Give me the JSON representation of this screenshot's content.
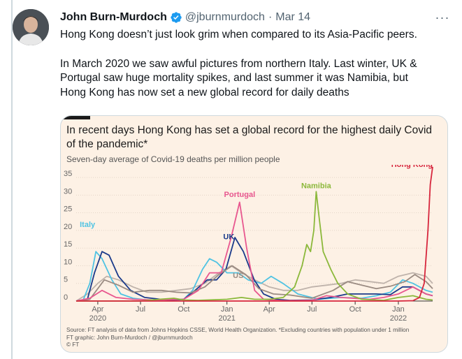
{
  "tweet": {
    "author": "John Burn-Murdoch",
    "handle": "@jburnmurdoch",
    "separator": "·",
    "date": "Mar 14",
    "more_icon": "···",
    "text_lines": [
      "Hong Kong doesn’t just look grim when compared to its Asia-Pacific peers.",
      "In March 2020 we saw awful pictures from northern Italy. Last winter, UK &",
      "Portugal saw huge mortality spikes, and last summer it was Namibia, but",
      "Hong Kong has now set a new global record for daily deaths"
    ],
    "colors": {
      "verified": "#1d9bf0",
      "secondary_text": "#536471",
      "chart_background": "#fdf1e5"
    }
  },
  "chart_data": {
    "type": "line",
    "title_lines": [
      "In recent days Hong Kong has set a global record for the highest daily Covid",
      "of the pandemic*"
    ],
    "subtitle": "Seven-day average of Covid-19 deaths per million people",
    "ylim": [
      0,
      37
    ],
    "yticks": [
      0,
      5,
      10,
      15,
      20,
      25,
      30,
      35
    ],
    "xlim": [
      "2020-02-15",
      "2022-03-15"
    ],
    "xticks": [
      {
        "date": "2020-04-01",
        "label": "Apr",
        "year": "2020"
      },
      {
        "date": "2020-07-01",
        "label": "Jul",
        "year": ""
      },
      {
        "date": "2020-10-01",
        "label": "Oct",
        "year": ""
      },
      {
        "date": "2021-01-01",
        "label": "Jan",
        "year": "2021"
      },
      {
        "date": "2021-04-01",
        "label": "Apr",
        "year": ""
      },
      {
        "date": "2021-07-01",
        "label": "Jul",
        "year": ""
      },
      {
        "date": "2021-10-01",
        "label": "Oct",
        "year": ""
      },
      {
        "date": "2022-01-01",
        "label": "Jan",
        "year": "2022"
      }
    ],
    "grid": true,
    "legend": "inline labels",
    "series": [
      {
        "name": "",
        "color": "#bfb3ab",
        "x": [
          "2020-02-15",
          "2020-03-10",
          "2020-04-01",
          "2020-04-20",
          "2020-05-15",
          "2020-06-15",
          "2020-07-15",
          "2020-08-15",
          "2020-09-15",
          "2020-10-15",
          "2020-11-15",
          "2020-12-15",
          "2021-01-10",
          "2021-02-01",
          "2021-03-01",
          "2021-04-01",
          "2021-05-01",
          "2021-06-01",
          "2021-07-01",
          "2021-08-01",
          "2021-09-01",
          "2021-10-01",
          "2021-11-01",
          "2021-12-01",
          "2022-01-01",
          "2022-02-01",
          "2022-03-01",
          "2022-03-15"
        ],
        "y": [
          0,
          2,
          5,
          7,
          6,
          4,
          2.5,
          2.5,
          3,
          3.5,
          5,
          8,
          10,
          8,
          6,
          4,
          3,
          3,
          4,
          4.5,
          5,
          6,
          5.5,
          5,
          7,
          8,
          7,
          5
        ]
      },
      {
        "name": "Italy",
        "color": "#4fc3e3",
        "x": [
          "2020-02-15",
          "2020-03-01",
          "2020-03-15",
          "2020-03-28",
          "2020-04-10",
          "2020-05-01",
          "2020-05-20",
          "2020-06-15",
          "2020-07-15",
          "2020-09-01",
          "2020-10-01",
          "2020-10-20",
          "2020-11-10",
          "2020-11-25",
          "2020-12-10",
          "2021-01-01",
          "2021-01-25",
          "2021-02-15",
          "2021-03-15",
          "2021-04-05",
          "2021-04-30",
          "2021-06-01",
          "2021-07-15",
          "2021-09-01",
          "2021-10-15",
          "2021-11-15",
          "2021-12-15",
          "2022-01-10",
          "2022-02-01",
          "2022-03-01",
          "2022-03-15"
        ],
        "y": [
          0,
          0.3,
          5,
          14,
          12,
          6,
          2,
          0.8,
          0.3,
          0.2,
          0.5,
          3,
          9,
          12,
          11,
          8,
          8,
          6,
          5,
          7,
          5,
          2,
          0.5,
          1,
          0.8,
          1.5,
          2.5,
          6,
          5,
          3,
          2.5
        ]
      },
      {
        "name": "UK",
        "color": "#1a3a8a",
        "x": [
          "2020-02-15",
          "2020-03-10",
          "2020-03-25",
          "2020-04-10",
          "2020-04-25",
          "2020-05-15",
          "2020-06-10",
          "2020-07-10",
          "2020-09-01",
          "2020-10-01",
          "2020-10-25",
          "2020-11-20",
          "2020-12-10",
          "2020-12-30",
          "2021-01-18",
          "2021-02-05",
          "2021-02-28",
          "2021-03-20",
          "2021-04-15",
          "2021-05-15",
          "2021-07-01",
          "2021-08-10",
          "2021-09-15",
          "2021-10-15",
          "2021-11-15",
          "2021-12-15",
          "2022-01-10",
          "2022-02-01",
          "2022-03-01",
          "2022-03-15"
        ],
        "y": [
          0,
          0.5,
          8,
          14,
          13,
          7,
          3,
          1,
          0.2,
          0.5,
          3,
          6,
          6,
          9,
          18,
          14,
          6,
          2,
          0.5,
          0.2,
          0.3,
          1,
          2,
          2,
          2,
          1.8,
          4,
          4,
          2,
          1.5
        ]
      },
      {
        "name": "US",
        "color": "#9a8b82",
        "x": [
          "2020-02-15",
          "2020-03-15",
          "2020-04-15",
          "2020-05-15",
          "2020-06-15",
          "2020-07-20",
          "2020-08-15",
          "2020-09-15",
          "2020-10-15",
          "2020-11-15",
          "2020-12-15",
          "2021-01-12",
          "2021-02-10",
          "2021-03-10",
          "2021-04-10",
          "2021-05-15",
          "2021-07-01",
          "2021-08-15",
          "2021-09-15",
          "2021-10-15",
          "2021-11-15",
          "2021-12-15",
          "2022-01-15",
          "2022-02-05",
          "2022-03-01",
          "2022-03-15"
        ],
        "y": [
          0,
          0.5,
          6,
          4.5,
          2.5,
          3,
          3,
          2.5,
          2.3,
          4,
          7.5,
          10,
          7.5,
          3.5,
          2,
          1.7,
          0.8,
          3,
          5.5,
          4.5,
          3.5,
          4.2,
          5.5,
          7.5,
          5.5,
          3.5
        ]
      },
      {
        "name": "Portugal",
        "color": "#e8578f",
        "x": [
          "2020-02-15",
          "2020-03-15",
          "2020-04-10",
          "2020-05-10",
          "2020-06-15",
          "2020-08-01",
          "2020-10-01",
          "2020-11-01",
          "2020-11-25",
          "2020-12-20",
          "2021-01-10",
          "2021-01-28",
          "2021-02-12",
          "2021-03-01",
          "2021-03-20",
          "2021-05-01",
          "2021-07-01",
          "2021-08-01",
          "2021-09-01",
          "2021-11-01",
          "2021-12-01",
          "2022-01-01",
          "2022-02-01",
          "2022-03-01",
          "2022-03-15"
        ],
        "y": [
          0,
          0.8,
          3,
          1,
          0.5,
          0.3,
          0.5,
          3,
          8,
          8,
          18,
          28,
          15,
          3,
          0.5,
          0.1,
          0.2,
          1.5,
          1,
          0.5,
          1,
          2,
          4,
          2,
          1.5
        ]
      },
      {
        "name": "Namibia",
        "color": "#8bb83a",
        "x": [
          "2020-02-15",
          "2020-07-01",
          "2020-08-10",
          "2020-09-10",
          "2020-10-01",
          "2020-11-01",
          "2021-01-01",
          "2021-02-01",
          "2021-03-01",
          "2021-04-01",
          "2021-05-01",
          "2021-05-25",
          "2021-06-10",
          "2021-06-20",
          "2021-06-28",
          "2021-07-05",
          "2021-07-10",
          "2021-07-16",
          "2021-07-25",
          "2021-08-10",
          "2021-08-25",
          "2021-09-15",
          "2021-10-15",
          "2021-12-01",
          "2022-01-01",
          "2022-02-01",
          "2022-03-01",
          "2022-03-15"
        ],
        "y": [
          0,
          0,
          0.5,
          0.8,
          0.3,
          0.2,
          0.5,
          1,
          0.5,
          0.5,
          1,
          4,
          10,
          16,
          14,
          20,
          31,
          24,
          14,
          9,
          5,
          2,
          0.5,
          0.2,
          1,
          1.5,
          0.5,
          0.3
        ]
      },
      {
        "name": "Hong Kong",
        "color": "#d7263d",
        "x": [
          "2020-02-15",
          "2021-06-01",
          "2021-12-31",
          "2022-02-01",
          "2022-02-15",
          "2022-02-25",
          "2022-03-05",
          "2022-03-10",
          "2022-03-15"
        ],
        "y": [
          0,
          0,
          0,
          0.1,
          1,
          5,
          20,
          33,
          38
        ]
      }
    ],
    "source_lines": [
      "Source: FT analysis of data from Johns Hopkins CSSE, World Health Organization. *Excluding countries with population under 1 million",
      "FT graphic: John Burn-Murdoch / @jburnmurdoch",
      "© FT"
    ]
  }
}
